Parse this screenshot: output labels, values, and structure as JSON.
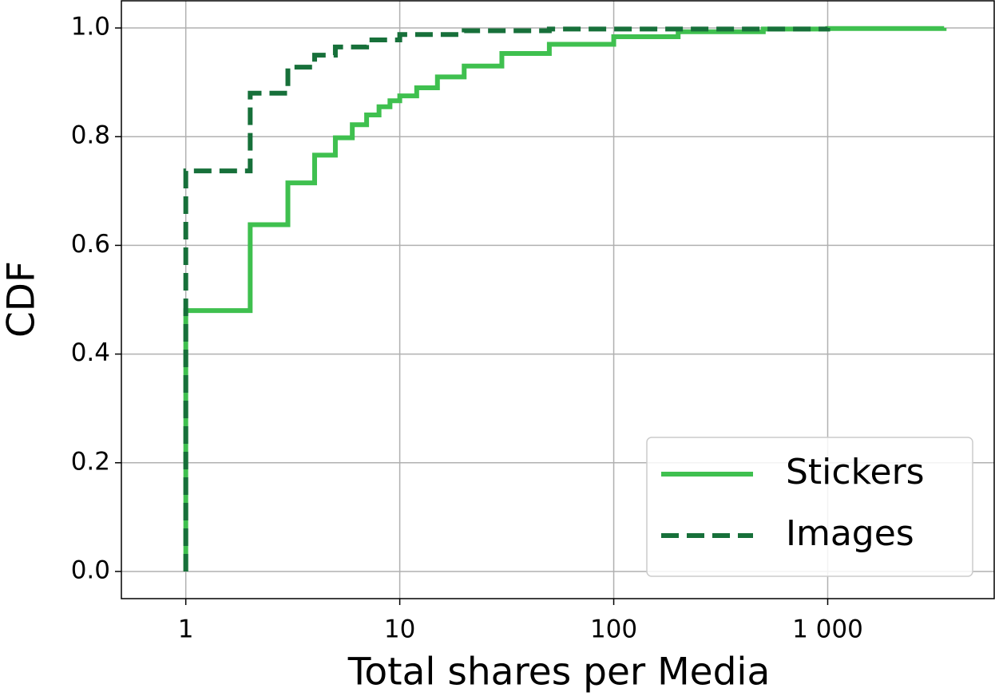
{
  "chart_data": {
    "type": "line",
    "xlabel": "Total shares per Media",
    "ylabel": "CDF",
    "xscale": "log",
    "grid": true,
    "legend": "lower right",
    "xlim": [
      0.5,
      6000
    ],
    "ylim": [
      -0.05,
      1.05
    ],
    "xticks": [
      1,
      10,
      100,
      {
        "value": 1000,
        "label": "1 000"
      }
    ],
    "yticks": [
      {
        "value": 0,
        "label": "0.0"
      },
      {
        "value": 0.2,
        "label": "0.2"
      },
      {
        "value": 0.4,
        "label": "0.4"
      },
      {
        "value": 0.6,
        "label": "0.6"
      },
      {
        "value": 0.8,
        "label": "0.8"
      },
      {
        "value": 1,
        "label": "1.0"
      }
    ],
    "series": [
      {
        "name": "Stickers",
        "color": "#3fc04f",
        "style": "solid",
        "x": [
          1,
          1,
          2,
          3,
          4,
          5,
          6,
          7,
          8,
          9,
          10,
          12,
          15,
          20,
          30,
          50,
          100,
          200,
          500,
          1000,
          3500
        ],
        "values": [
          0,
          0.48,
          0.638,
          0.715,
          0.766,
          0.798,
          0.822,
          0.84,
          0.855,
          0.866,
          0.875,
          0.89,
          0.91,
          0.93,
          0.953,
          0.97,
          0.984,
          0.993,
          0.998,
          0.999,
          1.0
        ]
      },
      {
        "name": "Images",
        "color": "#17703a",
        "style": "dashed",
        "x": [
          1,
          1,
          2,
          3,
          4,
          5,
          7,
          10,
          20,
          50,
          1000
        ],
        "values": [
          0,
          0.737,
          0.88,
          0.928,
          0.95,
          0.965,
          0.978,
          0.988,
          0.995,
          0.998,
          1.0
        ]
      }
    ]
  }
}
